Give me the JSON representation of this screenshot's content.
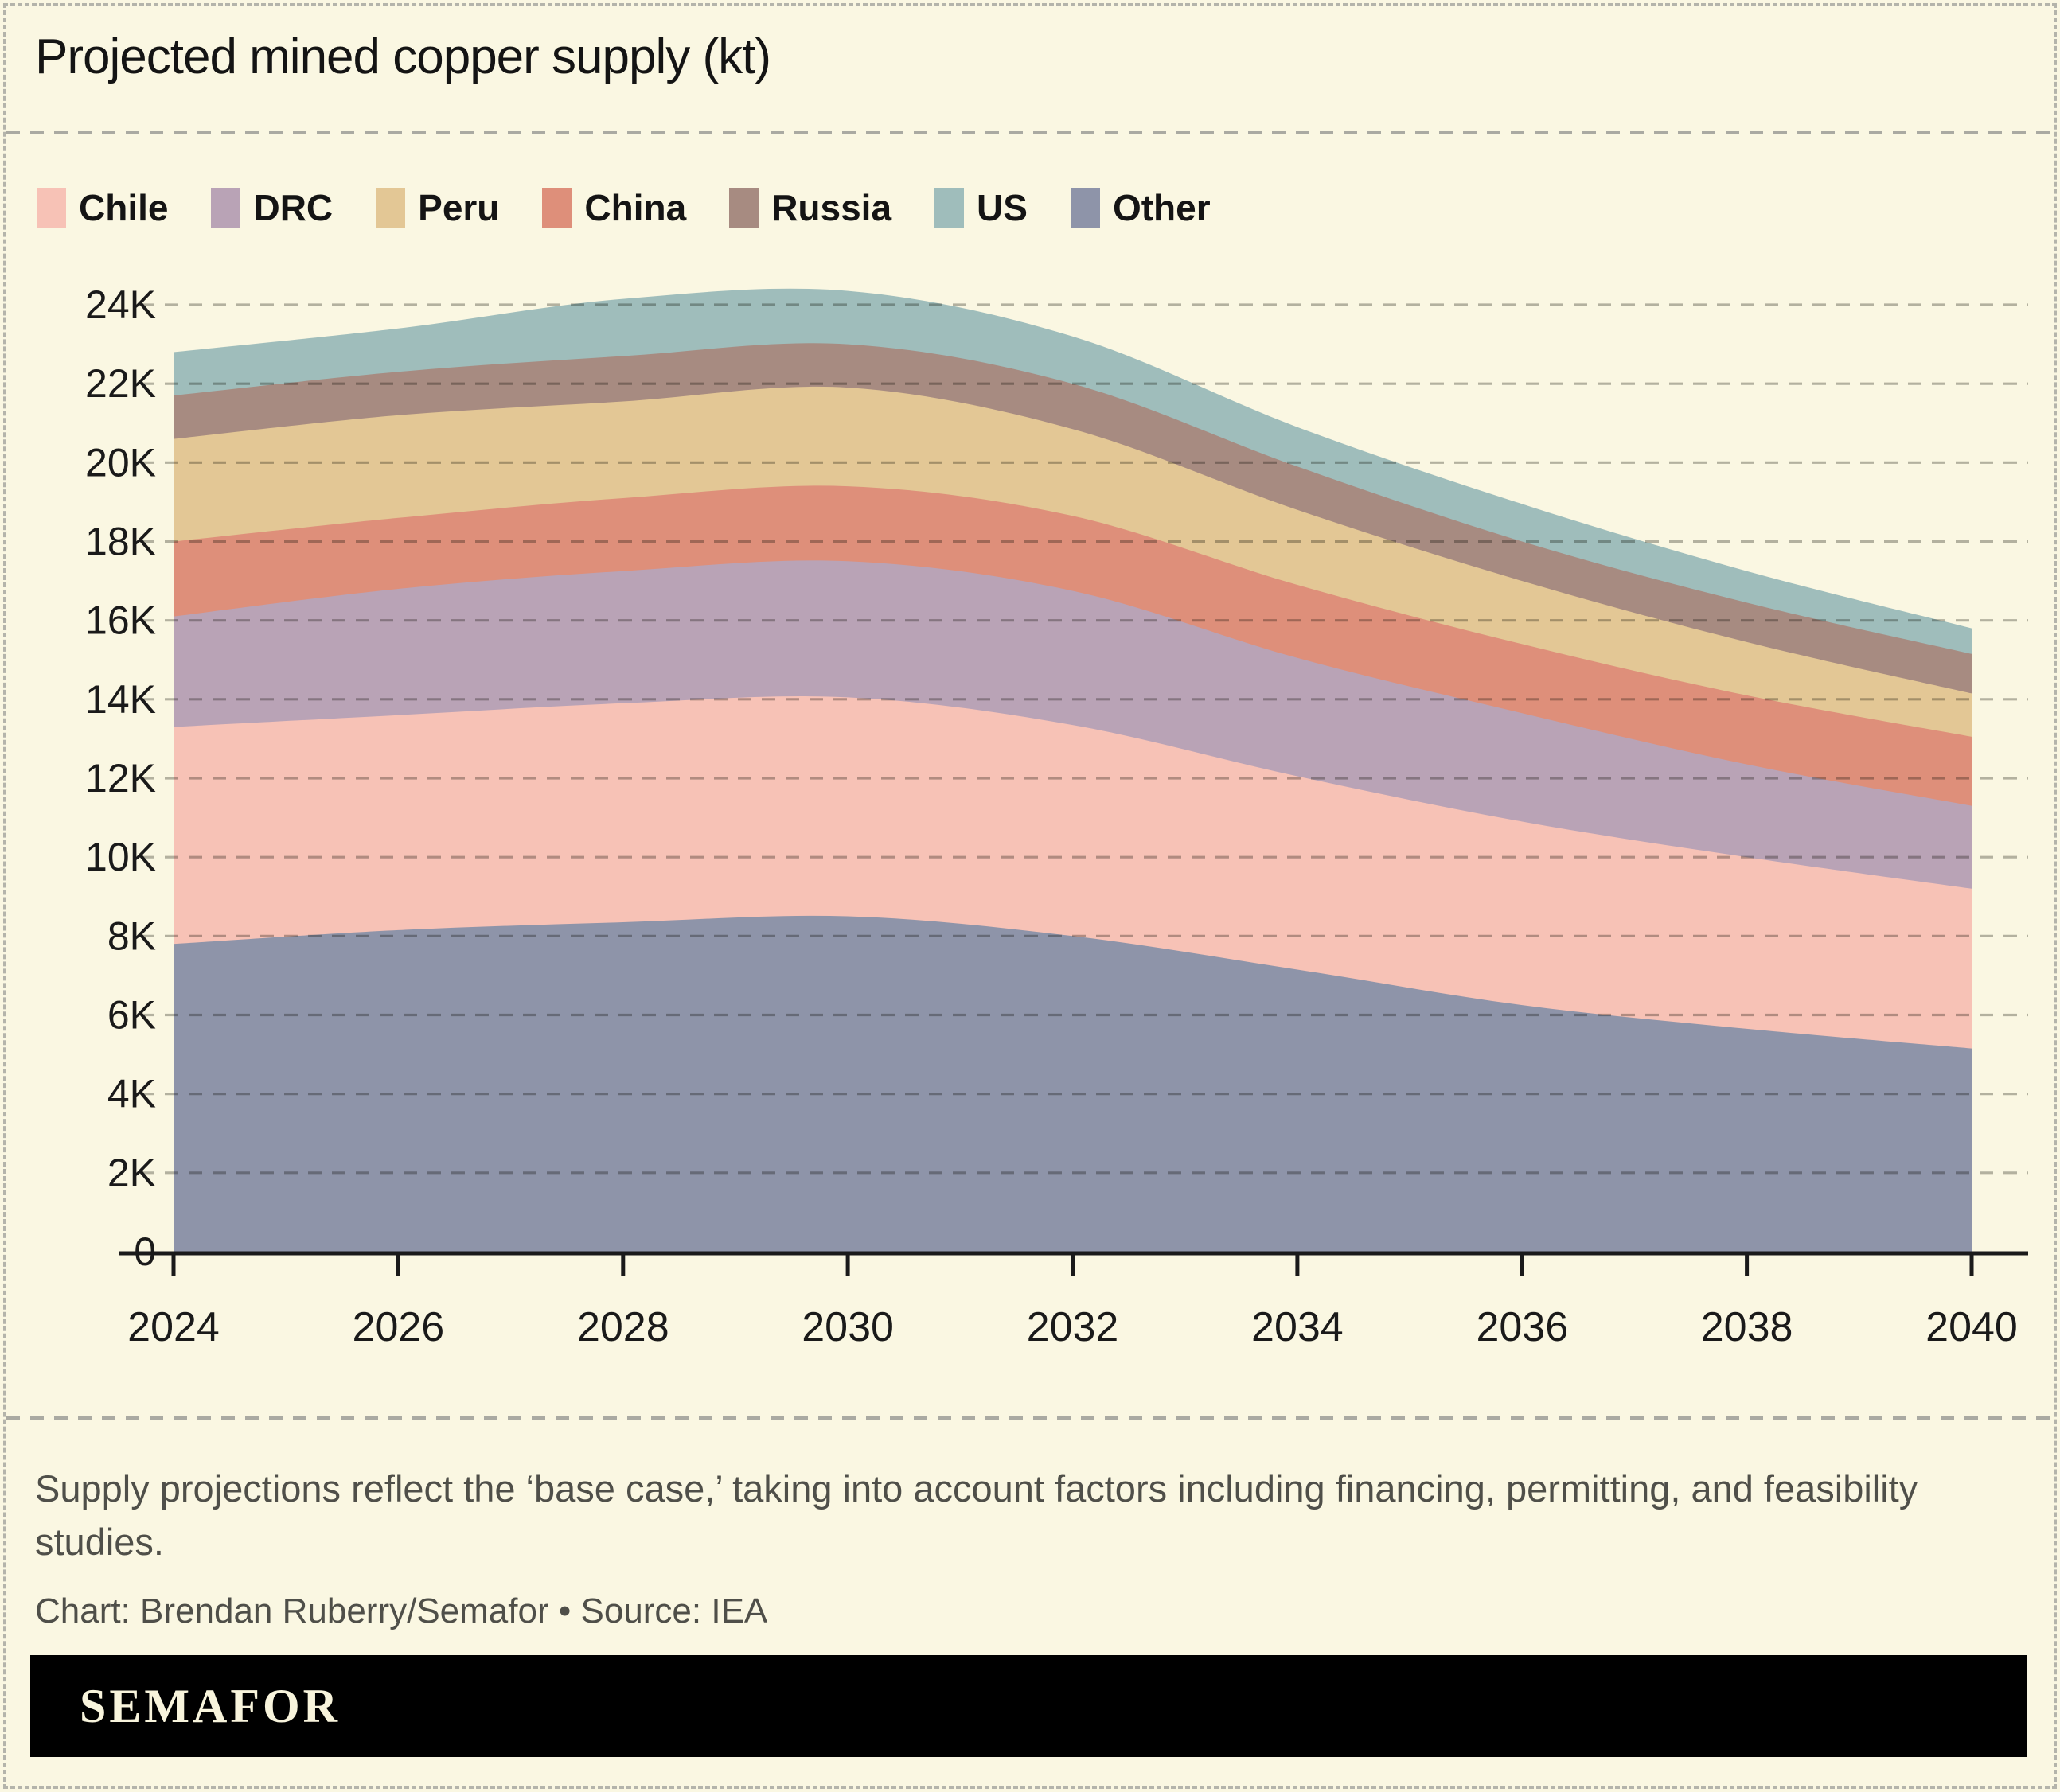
{
  "title": "Projected mined copper supply (kt)",
  "legend": [
    {
      "label": "Chile",
      "series": "Chile"
    },
    {
      "label": "DRC",
      "series": "DRC"
    },
    {
      "label": "Peru",
      "series": "Peru"
    },
    {
      "label": "China",
      "series": "China"
    },
    {
      "label": "Russia",
      "series": "Russia"
    },
    {
      "label": "US",
      "series": "US"
    },
    {
      "label": "Other",
      "series": "Other"
    }
  ],
  "chart_data": {
    "type": "area",
    "stacked": true,
    "title": "Projected mined copper supply (kt)",
    "x": [
      2024,
      2026,
      2028,
      2030,
      2032,
      2034,
      2036,
      2038,
      2040
    ],
    "x_tick_labels": [
      "2024",
      "2026",
      "2028",
      "2030",
      "2032",
      "2034",
      "2036",
      "2038",
      "2040"
    ],
    "series_bottom_to_top": [
      {
        "name": "Other",
        "color": "#8e94a9",
        "values": [
          7800,
          8150,
          8350,
          8500,
          8000,
          7150,
          6250,
          5650,
          5150
        ]
      },
      {
        "name": "Chile",
        "color": "#f7c2b6",
        "values": [
          5500,
          5450,
          5550,
          5550,
          5350,
          4900,
          4650,
          4350,
          4050
        ]
      },
      {
        "name": "DRC",
        "color": "#b9a3b6",
        "values": [
          2800,
          3200,
          3350,
          3450,
          3400,
          3000,
          2750,
          2350,
          2100
        ]
      },
      {
        "name": "China",
        "color": "#de8f7a",
        "values": [
          1900,
          1800,
          1850,
          1900,
          1900,
          1850,
          1750,
          1750,
          1750
        ]
      },
      {
        "name": "Peru",
        "color": "#e3c795",
        "values": [
          2600,
          2600,
          2450,
          2500,
          2200,
          1900,
          1600,
          1350,
          1100
        ]
      },
      {
        "name": "Russia",
        "color": "#a78b81",
        "values": [
          1100,
          1100,
          1150,
          1100,
          1150,
          1100,
          1000,
          1000,
          1000
        ]
      },
      {
        "name": "US",
        "color": "#9fbdbb",
        "values": [
          1100,
          1100,
          1450,
          1350,
          1200,
          1000,
          950,
          800,
          650
        ]
      }
    ],
    "totals": [
      22800,
      23400,
      24150,
      24350,
      23200,
      20900,
      18950,
      17250,
      15800
    ],
    "ylim": [
      0,
      24000
    ],
    "ytick_step": 2000,
    "ytick_labels": [
      "0",
      "2K",
      "4K",
      "6K",
      "8K",
      "10K",
      "12K",
      "14K",
      "16K",
      "18K",
      "20K",
      "22K",
      "24K"
    ],
    "grid": "dashed-horizontal",
    "legend_position": "top"
  },
  "colors": {
    "background": "#faf7e2",
    "axis": "#1a1a1a",
    "gridline": "#6f6f68",
    "note_text": "#4f4f49",
    "brand_bar": "#000000",
    "brand_text": "#f8f4dc"
  },
  "footer": {
    "note": "Supply projections reflect the ‘base case,’ taking into account factors including financing, permitting, and feasibility studies.",
    "credit": "Chart: Brendan Ruberry/Semafor • Source: IEA"
  },
  "brand": {
    "logo": "SEMAFOR"
  }
}
